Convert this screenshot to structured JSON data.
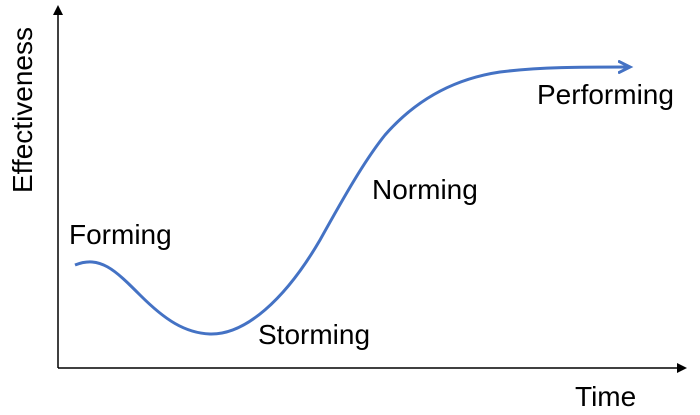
{
  "axes": {
    "y_label": "Effectiveness",
    "x_label": "Time"
  },
  "stages": [
    {
      "label": "Forming"
    },
    {
      "label": "Storming"
    },
    {
      "label": "Norming"
    },
    {
      "label": "Performing"
    }
  ],
  "colors": {
    "curve": "#4472C4",
    "axis": "#000000",
    "text": "#000000"
  }
}
